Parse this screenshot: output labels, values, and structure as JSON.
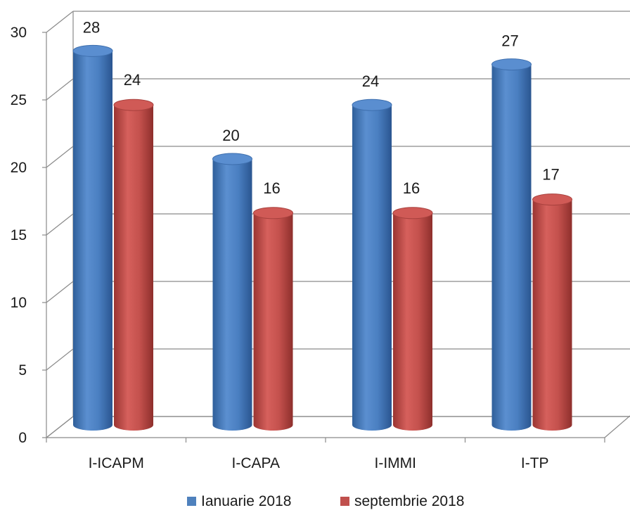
{
  "chart_data": {
    "type": "bar",
    "style": "3d-cylinder",
    "categories": [
      "I-ICAPM",
      "I-CAPA",
      "I-IMMI",
      "I-TP"
    ],
    "series": [
      {
        "name": "Ianuarie 2018",
        "values": [
          28,
          20,
          24,
          27
        ],
        "color": "#4f81bd"
      },
      {
        "name": "septembrie 2018",
        "values": [
          24,
          16,
          16,
          17
        ],
        "color": "#c0504d"
      }
    ],
    "y_ticks": [
      "0",
      "5",
      "10",
      "15",
      "20",
      "25",
      "30"
    ],
    "ylim": [
      0,
      30
    ],
    "data_labels": true,
    "grid": true,
    "legend_position": "bottom"
  }
}
